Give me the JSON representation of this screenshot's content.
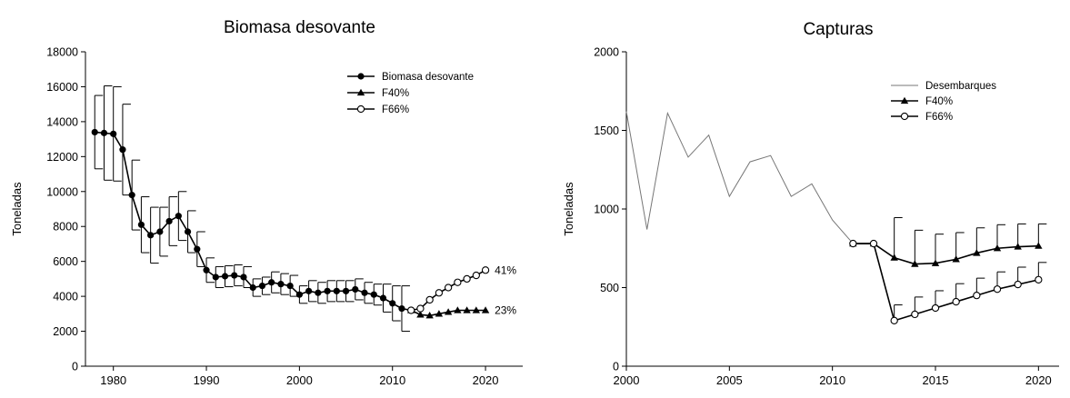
{
  "chart_data": [
    {
      "type": "line",
      "title": "Biomasa desovante",
      "ylabel": "Toneladas",
      "xlabel": "",
      "xlim": [
        1977,
        2024
      ],
      "ylim": [
        0,
        18000
      ],
      "xticks": [
        1980,
        1990,
        2000,
        2010,
        2020
      ],
      "yticks": [
        0,
        2000,
        4000,
        6000,
        8000,
        10000,
        12000,
        14000,
        16000,
        18000
      ],
      "grid": false,
      "legend_position": "top-right",
      "series": [
        {
          "name": "Biomasa desovante",
          "marker": "filled-circle",
          "x": [
            1978,
            1979,
            1980,
            1981,
            1982,
            1983,
            1984,
            1985,
            1986,
            1987,
            1988,
            1989,
            1990,
            1991,
            1992,
            1993,
            1994,
            1995,
            1996,
            1997,
            1998,
            1999,
            2000,
            2001,
            2002,
            2003,
            2004,
            2005,
            2006,
            2007,
            2008,
            2009,
            2010,
            2011,
            2012
          ],
          "y": [
            13400,
            13350,
            13300,
            12400,
            9800,
            8100,
            7500,
            7700,
            8300,
            8600,
            7700,
            6700,
            5500,
            5100,
            5150,
            5200,
            5100,
            4500,
            4600,
            4800,
            4700,
            4600,
            4100,
            4300,
            4200,
            4300,
            4300,
            4300,
            4400,
            4200,
            4100,
            3900,
            3600,
            3300,
            3200
          ],
          "err": [
            2100,
            2700,
            2700,
            2600,
            2000,
            1600,
            1600,
            1400,
            1400,
            1400,
            1200,
            1000,
            700,
            600,
            600,
            600,
            600,
            500,
            500,
            600,
            600,
            600,
            500,
            600,
            600,
            600,
            600,
            600,
            600,
            600,
            600,
            800,
            1000,
            1300,
            0
          ]
        },
        {
          "name": "F40%",
          "marker": "filled-triangle",
          "x": [
            2012,
            2013,
            2014,
            2015,
            2016,
            2017,
            2018,
            2019,
            2020
          ],
          "y": [
            3200,
            2950,
            2900,
            3000,
            3100,
            3200,
            3200,
            3200,
            3200
          ]
        },
        {
          "name": "F66%",
          "marker": "open-circle",
          "x": [
            2012,
            2013,
            2014,
            2015,
            2016,
            2017,
            2018,
            2019,
            2020
          ],
          "y": [
            3200,
            3300,
            3800,
            4200,
            4500,
            4800,
            5000,
            5200,
            5500
          ]
        }
      ],
      "annotations": [
        {
          "text": "41%",
          "x": 2020,
          "y": 5500
        },
        {
          "text": "23%",
          "x": 2020,
          "y": 3200
        }
      ]
    },
    {
      "type": "line",
      "title": "Capturas",
      "ylabel": "Toneladas",
      "xlabel": "",
      "xlim": [
        2000,
        2021
      ],
      "ylim": [
        0,
        2000
      ],
      "xticks": [
        2000,
        2005,
        2010,
        2015,
        2020
      ],
      "yticks": [
        0,
        500,
        1000,
        1500,
        2000
      ],
      "grid": false,
      "legend_position": "top-right",
      "series": [
        {
          "name": "Desembarques",
          "marker": "none",
          "x": [
            2000,
            2001,
            2002,
            2003,
            2004,
            2005,
            2006,
            2007,
            2008,
            2009,
            2010,
            2011,
            2012
          ],
          "y": [
            1620,
            870,
            1610,
            1330,
            1470,
            1080,
            1300,
            1340,
            1080,
            1160,
            930,
            780,
            780
          ]
        },
        {
          "name": "F40%",
          "marker": "filled-triangle",
          "x": [
            2011,
            2012,
            2013,
            2014,
            2015,
            2016,
            2017,
            2018,
            2019,
            2020
          ],
          "y": [
            780,
            780,
            690,
            650,
            655,
            680,
            720,
            750,
            760,
            765
          ],
          "err": [
            0,
            0,
            255,
            215,
            185,
            170,
            160,
            150,
            145,
            140
          ]
        },
        {
          "name": "F66%",
          "marker": "open-circle",
          "x": [
            2011,
            2012,
            2013,
            2014,
            2015,
            2016,
            2017,
            2018,
            2019,
            2020
          ],
          "y": [
            780,
            780,
            290,
            330,
            370,
            410,
            450,
            490,
            520,
            550
          ],
          "err": [
            0,
            0,
            100,
            110,
            110,
            115,
            110,
            110,
            110,
            110
          ]
        }
      ]
    }
  ]
}
